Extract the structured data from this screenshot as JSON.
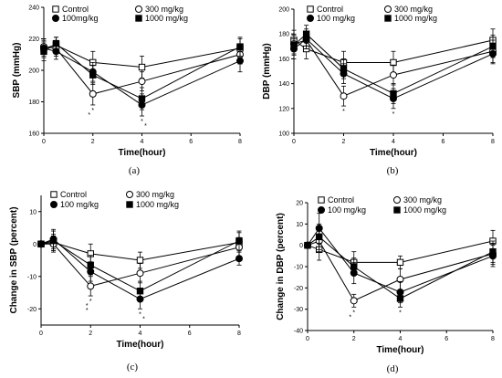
{
  "chart_data": [
    {
      "type": "line",
      "caption": "(a)",
      "xlabel": "Time(hour)",
      "ylabel": "SBP (mmHg)",
      "xlim": [
        0,
        8
      ],
      "ylim": [
        160,
        240
      ],
      "xticks": [
        "0",
        "2",
        "4",
        "6",
        "8"
      ],
      "yticks": [
        "160",
        "180",
        "200",
        "220",
        "240"
      ],
      "x": [
        0,
        0.5,
        2,
        4,
        8
      ],
      "series": [
        {
          "name": "Control",
          "marker": "open-square",
          "values": [
            214,
            216,
            205,
            202,
            214
          ],
          "errors": [
            6,
            5,
            7,
            7,
            6
          ]
        },
        {
          "name": "300 mg/kg",
          "marker": "open-circle",
          "values": [
            215,
            214,
            185,
            193,
            210
          ],
          "errors": [
            5,
            5,
            7,
            6,
            6
          ]
        },
        {
          "name": "100mg/kg",
          "marker": "filled-circle",
          "values": [
            214,
            212,
            199,
            178,
            206
          ],
          "errors": [
            5,
            5,
            6,
            7,
            7
          ]
        },
        {
          "name": "1000 mg/kg",
          "marker": "filled-square",
          "values": [
            212,
            217,
            197,
            182,
            215
          ],
          "errors": [
            6,
            4,
            6,
            7,
            6
          ]
        }
      ],
      "annotations": [
        "*",
        "*",
        "*",
        "*"
      ]
    },
    {
      "type": "line",
      "caption": "(b)",
      "xlabel": "Time(hour)",
      "ylabel": "DBP (mmHg)",
      "xlim": [
        0,
        8
      ],
      "ylim": [
        100,
        200
      ],
      "xticks": [
        "0",
        "2",
        "4",
        "6",
        "8"
      ],
      "yticks": [
        "100",
        "120",
        "140",
        "160",
        "180",
        "200"
      ],
      "x": [
        0,
        0.5,
        2,
        4,
        8
      ],
      "series": [
        {
          "name": "Control",
          "marker": "open-square",
          "values": [
            175,
            168,
            157,
            157,
            175
          ],
          "errors": [
            8,
            8,
            9,
            9,
            9
          ]
        },
        {
          "name": "300 mg/kg",
          "marker": "open-circle",
          "values": [
            172,
            175,
            130,
            147,
            166
          ],
          "errors": [
            8,
            7,
            8,
            8,
            9
          ]
        },
        {
          "name": "100 mg/kg",
          "marker": "filled-circle",
          "values": [
            168,
            176,
            148,
            128,
            164
          ],
          "errors": [
            8,
            8,
            8,
            8,
            8
          ]
        },
        {
          "name": "1000 mg/kg",
          "marker": "filled-square",
          "values": [
            171,
            180,
            152,
            132,
            170
          ],
          "errors": [
            8,
            7,
            8,
            8,
            9
          ]
        }
      ],
      "annotations": [
        "*",
        "*"
      ]
    },
    {
      "type": "line",
      "caption": "(c)",
      "xlabel": "Time(hour)",
      "ylabel": "Change in SBP (percent)",
      "xlim": [
        0,
        8
      ],
      "ylim": [
        -25,
        15
      ],
      "xticks": [
        "0",
        "2",
        "4",
        "6",
        "8"
      ],
      "yticks": [
        "-20",
        "-10",
        "0",
        "10"
      ],
      "x": [
        0,
        0.5,
        2,
        4,
        8
      ],
      "series": [
        {
          "name": "Control",
          "marker": "open-square",
          "values": [
            0,
            0.5,
            -3,
            -5,
            0.5
          ],
          "errors": [
            0,
            2.5,
            3,
            2.5,
            3
          ]
        },
        {
          "name": "300 mg/kg",
          "marker": "open-circle",
          "values": [
            0,
            0,
            -13,
            -9,
            -1
          ],
          "errors": [
            0,
            2.5,
            3,
            3,
            3
          ]
        },
        {
          "name": "100 mg/kg",
          "marker": "filled-circle",
          "values": [
            0,
            1.5,
            -8.5,
            -17,
            -4.5
          ],
          "errors": [
            0,
            3,
            3,
            3,
            2
          ]
        },
        {
          "name": "1000 mg/kg",
          "marker": "filled-square",
          "values": [
            0,
            1,
            -6.5,
            -14.5,
            1
          ],
          "errors": [
            0,
            3,
            3,
            3,
            3
          ]
        }
      ],
      "annotations": [
        "*",
        "*",
        "*",
        "*",
        "*"
      ]
    },
    {
      "type": "line",
      "caption": "(d)",
      "xlabel": "Time(hour)",
      "ylabel": "Change in DBP (percent)",
      "xlim": [
        0,
        8
      ],
      "ylim": [
        -40,
        20
      ],
      "xticks": [
        "0",
        "2",
        "4",
        "6",
        "8"
      ],
      "yticks": [
        "-40",
        "-30",
        "-20",
        "-10",
        "0",
        "10",
        "20"
      ],
      "x": [
        0,
        0.5,
        2,
        4,
        8
      ],
      "series": [
        {
          "name": "Control",
          "marker": "open-square",
          "values": [
            0,
            -2,
            -8,
            -8,
            2
          ],
          "errors": [
            0,
            5,
            5,
            3,
            5
          ]
        },
        {
          "name": "300 mg/kg",
          "marker": "open-circle",
          "values": [
            0,
            2,
            -26,
            -16,
            -4
          ],
          "errors": [
            0,
            5,
            3,
            5,
            5
          ]
        },
        {
          "name": "100 mg/kg",
          "marker": "filled-circle",
          "values": [
            0,
            8,
            -13,
            -22,
            -5
          ],
          "errors": [
            0,
            7,
            5,
            5,
            5
          ]
        },
        {
          "name": "1000 mg/kg",
          "marker": "filled-square",
          "values": [
            0,
            4,
            -10,
            -25,
            -3
          ],
          "errors": [
            0,
            6,
            4,
            4,
            5
          ]
        }
      ],
      "annotations": [
        "*",
        "*",
        "*"
      ]
    }
  ]
}
